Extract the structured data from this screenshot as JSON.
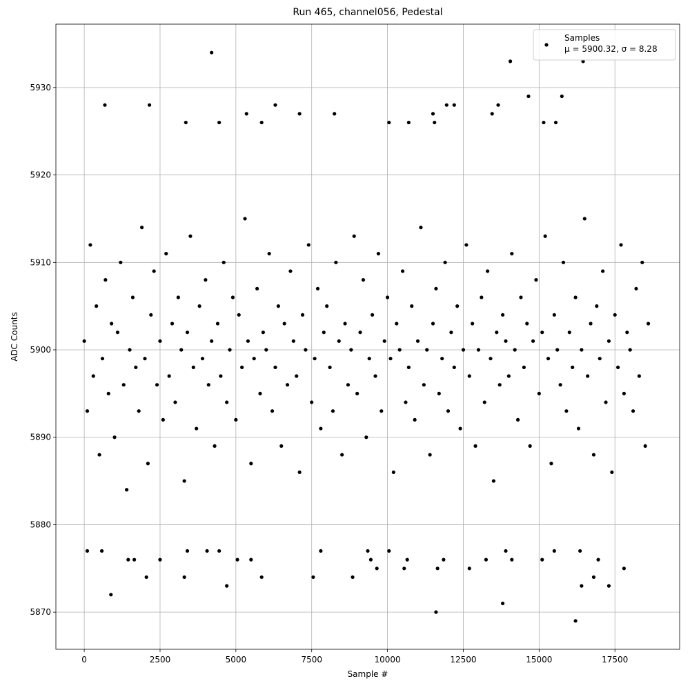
{
  "chart_data": {
    "type": "scatter",
    "title": "Run 465, channel056, Pedestal",
    "x_label": "Sample #",
    "y_label": "ADC Counts",
    "xlim": [
      -935,
      19634
    ],
    "ylim": [
      5865.75,
      5937.25
    ],
    "xticks": [
      0,
      2500,
      5000,
      7500,
      10000,
      12500,
      15000,
      17500
    ],
    "yticks": [
      5870,
      5880,
      5890,
      5900,
      5910,
      5920,
      5930
    ],
    "grid": true,
    "legend": "upper right",
    "legend_stats": "μ = 5900.32, σ = 8.28",
    "x": [
      0,
      100,
      200,
      300,
      400,
      500,
      600,
      700,
      800,
      900,
      1000,
      1100,
      1200,
      1300,
      1400,
      1500,
      1600,
      1700,
      1800,
      1900,
      2000,
      2100,
      2200,
      2300,
      2400,
      2500,
      2600,
      2700,
      2800,
      2900,
      3000,
      3100,
      3200,
      3300,
      3400,
      3500,
      3600,
      3700,
      3800,
      3900,
      4000,
      4100,
      4200,
      4300,
      4400,
      4500,
      4600,
      4700,
      4800,
      4900,
      5000,
      5100,
      5200,
      5300,
      5400,
      5500,
      5600,
      5700,
      5800,
      5900,
      6000,
      6100,
      6200,
      6300,
      6400,
      6500,
      6600,
      6700,
      6800,
      6900,
      7000,
      7100,
      7200,
      7300,
      7400,
      7500,
      7600,
      7700,
      7800,
      7900,
      8000,
      8100,
      8200,
      8300,
      8400,
      8500,
      8600,
      8700,
      8800,
      8900,
      9000,
      9100,
      9200,
      9300,
      9400,
      9500,
      9600,
      9700,
      9800,
      9900,
      10000,
      10100,
      10200,
      10300,
      10400,
      10500,
      10600,
      10700,
      10800,
      10900,
      11000,
      11100,
      11200,
      11300,
      11400,
      11500,
      11600,
      11700,
      11800,
      11900,
      12000,
      12100,
      12200,
      12300,
      12400,
      12500,
      12600,
      12700,
      12800,
      12900,
      13000,
      13100,
      13200,
      13300,
      13400,
      13500,
      13600,
      13700,
      13800,
      13900,
      14000,
      14100,
      14200,
      14300,
      14400,
      14500,
      14600,
      14700,
      14800,
      14900,
      15000,
      15100,
      15200,
      15300,
      15400,
      15500,
      15600,
      15700,
      15800,
      15900,
      16000,
      16100,
      16200,
      16300,
      16400,
      16500,
      16600,
      16700,
      16800,
      16900,
      17000,
      17100,
      17200,
      17300,
      17400,
      17500,
      17600,
      17700,
      17800,
      17900,
      18000,
      18100,
      18200,
      18300,
      18400,
      18500,
      18600,
      4200,
      14050,
      16450,
      14650,
      15750,
      680,
      2150,
      6300,
      11950,
      12200,
      13650,
      7100,
      8250,
      5350,
      11500,
      13450,
      3350,
      4450,
      5850,
      10050,
      10700,
      15150,
      15550,
      11550,
      880,
      11600,
      13800,
      16200,
      4700,
      16400,
      17300,
      2050,
      3300,
      5850,
      7550,
      8850,
      16800,
      9650,
      10550,
      11650,
      12700,
      17800,
      100,
      580,
      3400,
      4050,
      4450,
      7800,
      9350,
      10050,
      13900,
      15500,
      16350,
      1450,
      1650,
      2500,
      5050,
      5500,
      9450,
      10650,
      11850,
      13250,
      14100,
      15100,
      16950
    ],
    "series": [
      {
        "name": "Samples",
        "color": "#000000",
        "values": [
          5901,
          5893,
          5912,
          5897,
          5905,
          5888,
          5899,
          5908,
          5895,
          5903,
          5890,
          5902,
          5910,
          5896,
          5884,
          5900,
          5906,
          5898,
          5893,
          5914,
          5899,
          5887,
          5904,
          5909,
          5896,
          5901,
          5892,
          5911,
          5897,
          5903,
          5894,
          5906,
          5900,
          5885,
          5902,
          5913,
          5898,
          5891,
          5905,
          5899,
          5908,
          5896,
          5901,
          5889,
          5903,
          5897,
          5910,
          5894,
          5900,
          5906,
          5892,
          5904,
          5898,
          5915,
          5901,
          5887,
          5899,
          5907,
          5895,
          5902,
          5900,
          5911,
          5893,
          5898,
          5905,
          5889,
          5903,
          5896,
          5909,
          5901,
          5897,
          5886,
          5904,
          5900,
          5912,
          5894,
          5899,
          5907,
          5891,
          5902,
          5905,
          5898,
          5893,
          5910,
          5901,
          5888,
          5903,
          5896,
          5900,
          5913,
          5895,
          5902,
          5908,
          5890,
          5899,
          5904,
          5897,
          5911,
          5893,
          5901,
          5906,
          5899,
          5886,
          5903,
          5900,
          5909,
          5894,
          5898,
          5905,
          5892,
          5901,
          5914,
          5896,
          5900,
          5888,
          5903,
          5907,
          5895,
          5899,
          5910,
          5893,
          5902,
          5898,
          5905,
          5891,
          5900,
          5912,
          5897,
          5903,
          5889,
          5900,
          5906,
          5894,
          5909,
          5899,
          5885,
          5902,
          5896,
          5904,
          5901,
          5897,
          5911,
          5900,
          5892,
          5906,
          5898,
          5903,
          5889,
          5901,
          5908,
          5895,
          5902,
          5913,
          5899,
          5887,
          5904,
          5900,
          5896,
          5910,
          5893,
          5902,
          5898,
          5906,
          5891,
          5900,
          5915,
          5897,
          5903,
          5888,
          5905,
          5899,
          5909,
          5894,
          5901,
          5886,
          5904,
          5898,
          5912,
          5895,
          5902,
          5900,
          5893,
          5907,
          5897,
          5910,
          5889,
          5903,
          5934,
          5933,
          5933,
          5929,
          5929,
          5928,
          5928,
          5928,
          5928,
          5928,
          5928,
          5927,
          5927,
          5927,
          5927,
          5927,
          5926,
          5926,
          5926,
          5926,
          5926,
          5926,
          5926,
          5926,
          5872,
          5870,
          5871,
          5869,
          5873,
          5873,
          5873,
          5874,
          5874,
          5874,
          5874,
          5874,
          5874,
          5875,
          5875,
          5875,
          5875,
          5875,
          5877,
          5877,
          5877,
          5877,
          5877,
          5877,
          5877,
          5877,
          5877,
          5877,
          5877,
          5876,
          5876,
          5876,
          5876,
          5876,
          5876,
          5876,
          5876,
          5876,
          5876,
          5876,
          5876
        ]
      }
    ]
  }
}
